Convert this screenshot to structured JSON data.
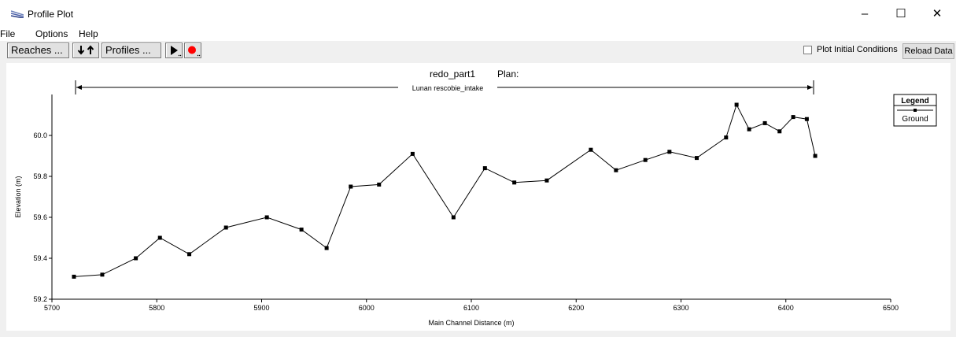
{
  "window": {
    "title": "Profile Plot",
    "minimize": "–",
    "maximize": "☐",
    "close": "✕"
  },
  "menu": [
    "File",
    "Options",
    "Help"
  ],
  "toolbar": {
    "reaches_label": "Reaches ...",
    "profiles_label": "Profiles ...",
    "plot_initial_label": "Plot Initial Conditions",
    "plot_initial_checked": false,
    "reload_label": "Reload Data"
  },
  "plot_header": {
    "plan_name": "redo_part1",
    "plan_label": "Plan:",
    "reach_label": "Lunan rescobie_intake"
  },
  "legend": {
    "title": "Legend",
    "entries": [
      "Ground"
    ]
  },
  "chart_data": {
    "type": "line",
    "xlabel": "Main Channel Distance (m)",
    "ylabel": "Elevation (m)",
    "xlim": [
      5700,
      6500
    ],
    "ylim": [
      59.2,
      60.2
    ],
    "xticks": [
      "5700",
      "5800",
      "5900",
      "6000",
      "6100",
      "6200",
      "6300",
      "6400",
      "6500"
    ],
    "yticks": [
      "59.2",
      "59.4",
      "59.6",
      "59.8",
      "60.0"
    ],
    "series": [
      {
        "name": "Ground",
        "color": "#000000",
        "marker": "square",
        "x": [
          5721,
          5748,
          5780,
          5803,
          5831,
          5866,
          5905,
          5938,
          5962,
          5985,
          6012,
          6044,
          6083,
          6113,
          6141,
          6172,
          6214,
          6238,
          6266,
          6289,
          6315,
          6343,
          6353,
          6365,
          6380,
          6394,
          6407,
          6420,
          6428
        ],
        "y": [
          59.31,
          59.32,
          59.4,
          59.5,
          59.42,
          59.55,
          59.6,
          59.54,
          59.45,
          59.75,
          59.76,
          59.91,
          59.6,
          59.84,
          59.77,
          59.78,
          59.93,
          59.83,
          59.88,
          59.92,
          59.89,
          59.99,
          60.15,
          60.03,
          60.06,
          60.02,
          60.09,
          60.08,
          59.9
        ]
      }
    ]
  }
}
